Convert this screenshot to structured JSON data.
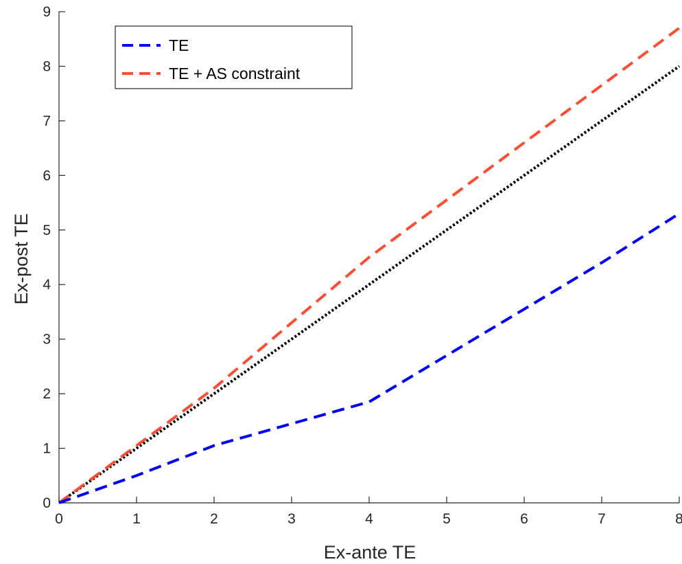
{
  "chart_data": {
    "type": "line",
    "xlabel": "Ex-ante TE",
    "ylabel": "Ex-post TE",
    "xlim": [
      0,
      8
    ],
    "ylim": [
      0,
      9
    ],
    "xticks": [
      "0",
      "1",
      "2",
      "3",
      "4",
      "5",
      "6",
      "7",
      "8"
    ],
    "yticks": [
      "0",
      "1",
      "2",
      "3",
      "4",
      "5",
      "6",
      "7",
      "8",
      "9"
    ],
    "grid": false,
    "legend_position": "top-left",
    "series": [
      {
        "name": "TE",
        "color": "#0000ff",
        "style": "dashed",
        "x": [
          0,
          1,
          2,
          3,
          4,
          5,
          6,
          7,
          8
        ],
        "y": [
          0,
          0.5,
          1.05,
          1.45,
          1.85,
          2.7,
          3.55,
          4.4,
          5.3
        ]
      },
      {
        "name": "TE + AS constraint",
        "color": "#ff4d33",
        "style": "dashed",
        "x": [
          0,
          1,
          2,
          3,
          4,
          5,
          6,
          7,
          8
        ],
        "y": [
          0,
          1.05,
          2.1,
          3.3,
          4.5,
          5.55,
          6.6,
          7.65,
          8.7
        ]
      },
      {
        "name": "",
        "color": "#000000",
        "style": "dotted",
        "x": [
          0,
          8
        ],
        "y": [
          0,
          8
        ]
      }
    ]
  }
}
